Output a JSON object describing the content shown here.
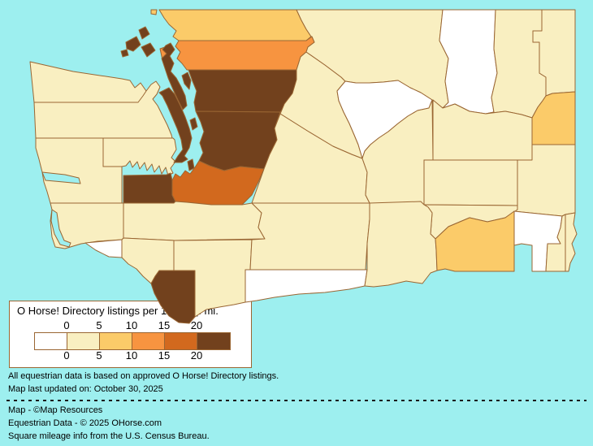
{
  "map": {
    "region": "Washington State counties choropleth",
    "water_color": "#9DEFEF",
    "county_border_color": "#9A6633",
    "bucket_colors": [
      "#FFFFFF",
      "#F9EFC1",
      "#FBCB69",
      "#F79440",
      "#D2691E",
      "#72411D"
    ],
    "bucket_ranges": [
      "0",
      "0-5",
      "5-10",
      "10-15",
      "15-20",
      "20+"
    ],
    "counties": {
      "clallam": 1,
      "jefferson": 1,
      "grays_harbor": 1,
      "mason": 1,
      "kitsap": 5,
      "thurston": 5,
      "pierce": 4,
      "king": 5,
      "snohomish": 5,
      "skagit": 3,
      "whatcom": 2,
      "san_juan": 5,
      "island": 5,
      "lewis": 1,
      "pacific": 1,
      "wahkiakum": 0,
      "cowlitz": 1,
      "clark": 5,
      "skamania": 1,
      "klickitat": 0,
      "yakima": 1,
      "kittitas": 1,
      "chelan": 1,
      "okanogan": 1,
      "douglas": 0,
      "grant": 1,
      "lincoln": 1,
      "spokane": 2,
      "stevens": 1,
      "pend_oreille": 1,
      "ferry": 0,
      "adams": 1,
      "whitman": 1,
      "franklin": 1,
      "benton": 1,
      "walla_walla": 2,
      "columbia": 0,
      "garfield": 1,
      "asotin": 1
    }
  },
  "legend": {
    "title": "O Horse! Directory listings per 1000 sq. mi.",
    "scale_ticks": [
      "0",
      "5",
      "10",
      "15",
      "20"
    ]
  },
  "footer": {
    "lines": [
      "All equestrian data is based on approved O Horse! Directory listings.",
      "Map last updated on:  October 30, 2025",
      "Map - ©Map Resources",
      "Equestrian Data - © 2025 OHorse.com",
      "Square mileage info from the U.S. Census Bureau."
    ]
  }
}
